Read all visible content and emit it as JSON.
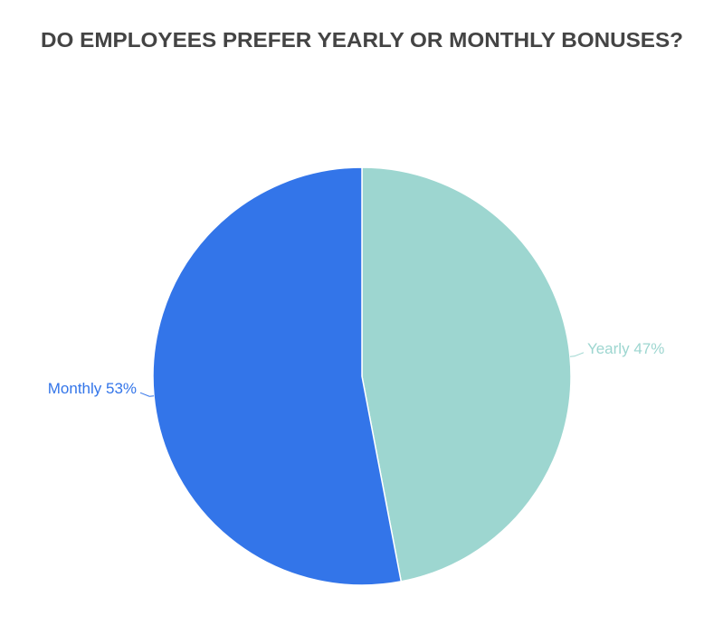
{
  "chart_data": {
    "type": "pie",
    "title": "DO EMPLOYEES PREFER YEARLY OR MONTHLY BONUSES?",
    "categories": [
      "Yearly",
      "Monthly"
    ],
    "values": [
      47,
      53
    ],
    "value_labels": [
      "47%",
      "53%"
    ],
    "colors": [
      "#9dd6d0",
      "#3375e9"
    ]
  }
}
